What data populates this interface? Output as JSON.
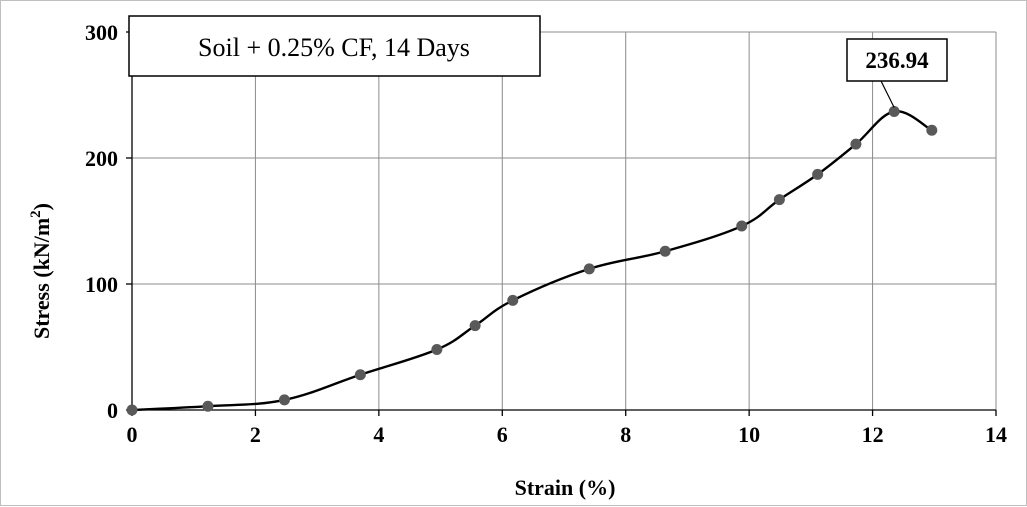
{
  "chart_data": {
    "type": "line",
    "title": "",
    "legend_label": "Soil + 0.25% CF, 14 Days",
    "legend_position": "top-left",
    "xlabel": "Strain (%)",
    "ylabel": "Stress (kN/m²)",
    "ylabel_main": "Stress (kN/m",
    "ylabel_sup": "2",
    "ylabel_end": ")",
    "xlim": [
      0,
      14
    ],
    "ylim": [
      0,
      300
    ],
    "x_ticks": [
      0,
      2,
      4,
      6,
      8,
      10,
      12,
      14
    ],
    "y_ticks": [
      0,
      100,
      200,
      300
    ],
    "grid": true,
    "series": [
      {
        "x": [
          0,
          1.23,
          2.47,
          3.7,
          4.94,
          5.56,
          6.17,
          7.41,
          8.64,
          9.88,
          10.49,
          11.11,
          11.73,
          12.35,
          12.96
        ],
        "y": [
          0,
          3,
          8,
          28,
          48,
          67,
          87,
          112,
          126,
          146,
          167,
          187,
          211,
          236.94,
          222
        ],
        "line_color": "#000000",
        "marker_color": "#595959"
      }
    ],
    "annotations": [
      {
        "text": "236.94",
        "x": 12.35,
        "y": 236.94
      }
    ]
  }
}
